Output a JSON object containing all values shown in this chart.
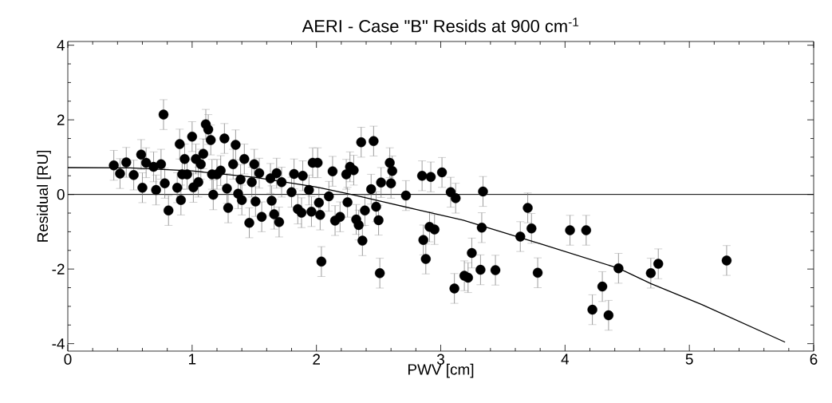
{
  "chart_data": {
    "type": "scatter",
    "title": "AERI - Case \"B\" Resids at 900 cm$^{-1}$",
    "xlabel": "PWV [cm]",
    "ylabel": "Residual [RU]",
    "xlim": [
      0,
      6
    ],
    "ylim": [
      -4.2,
      4.1
    ],
    "xticks": [
      0,
      1,
      2,
      3,
      4,
      5,
      6
    ],
    "yticks": [
      -4,
      -2,
      0,
      2,
      4
    ],
    "ref_lines": [
      {
        "axis": "y",
        "value": 0,
        "color": "#000000"
      }
    ],
    "series": [
      {
        "marker": "circle",
        "color": "#000000",
        "x": [
          0.37,
          0.42,
          0.47,
          0.53,
          0.59,
          0.63,
          0.6,
          0.71,
          0.77,
          0.81,
          0.78,
          0.88,
          0.9,
          0.91,
          0.92,
          0.94,
          1.0,
          1.01,
          1.11,
          1.13,
          1.15,
          1.07,
          1.17,
          1.2,
          1.23,
          1.26,
          1.28,
          1.29,
          1.35,
          1.37,
          1.4,
          1.42,
          1.46,
          1.48,
          1.51,
          1.54,
          1.56,
          1.63,
          1.64,
          1.66,
          1.03,
          1.05,
          1.09,
          1.16,
          1.33,
          1.39,
          1.5,
          0.96,
          0.69,
          0.75,
          1.7,
          1.68,
          1.72,
          1.82,
          1.8,
          1.85,
          1.88,
          1.89,
          1.96,
          1.97,
          2.01,
          1.94,
          2.02,
          2.03,
          2.04,
          2.1,
          2.13,
          2.15,
          2.19,
          2.24,
          2.25,
          2.27,
          2.3,
          2.32,
          2.34,
          2.36,
          2.37,
          2.39,
          2.44,
          2.46,
          2.48,
          2.5,
          2.51,
          2.52,
          2.59,
          2.6,
          2.61,
          2.72,
          2.85,
          2.88,
          2.86,
          2.92,
          2.91,
          2.95,
          3.01,
          3.08,
          3.12,
          3.11,
          3.19,
          3.22,
          3.25,
          3.34,
          3.33,
          3.32,
          3.44,
          3.7,
          3.73,
          3.64,
          3.78,
          4.04,
          4.17,
          4.22,
          4.3,
          4.35,
          4.43,
          4.69,
          4.75,
          5.3
        ],
        "values": [
          0.78,
          0.56,
          0.86,
          0.52,
          1.07,
          0.85,
          0.18,
          0.12,
          2.14,
          -0.43,
          0.3,
          0.18,
          1.35,
          -0.15,
          0.54,
          0.95,
          1.55,
          0.19,
          1.88,
          1.74,
          1.46,
          0.81,
          -0.01,
          0.54,
          0.64,
          1.5,
          0.16,
          -0.36,
          1.33,
          0.02,
          -0.15,
          0.95,
          -0.76,
          0.33,
          -0.19,
          0.57,
          -0.6,
          0.43,
          -0.17,
          -0.53,
          0.95,
          0.33,
          1.09,
          0.54,
          0.81,
          0.4,
          0.81,
          0.54,
          0.74,
          0.81,
          -0.74,
          0.57,
          0.33,
          0.55,
          0.06,
          -0.39,
          -0.49,
          0.5,
          -0.46,
          0.85,
          0.85,
          0.12,
          -0.22,
          -0.55,
          -1.8,
          -0.05,
          0.62,
          -0.7,
          -0.6,
          0.54,
          -0.21,
          0.74,
          0.65,
          -0.67,
          -0.82,
          1.4,
          -1.24,
          -0.43,
          0.14,
          1.43,
          -0.33,
          -0.69,
          -2.11,
          0.32,
          0.85,
          0.3,
          0.63,
          -0.03,
          0.5,
          -1.73,
          -1.22,
          0.47,
          -0.87,
          -0.94,
          0.59,
          0.06,
          -0.1,
          -2.52,
          -2.18,
          -2.23,
          -1.57,
          0.08,
          -0.89,
          -2.02,
          -2.03,
          -0.36,
          -0.91,
          -1.13,
          -2.1,
          -0.96,
          -0.96,
          -3.09,
          -2.47,
          -3.24,
          -1.98,
          -2.11,
          -1.86,
          -1.77
        ],
        "errors": [
          0.4,
          0.4,
          0.4,
          0.4,
          0.4,
          0.4,
          0.4,
          0.4,
          0.4,
          0.4,
          0.4,
          0.4,
          0.4,
          0.4,
          0.4,
          0.4,
          0.4,
          0.4,
          0.4,
          0.4,
          0.4,
          0.4,
          0.4,
          0.4,
          0.4,
          0.4,
          0.4,
          0.4,
          0.4,
          0.4,
          0.4,
          0.4,
          0.4,
          0.4,
          0.4,
          0.4,
          0.4,
          0.4,
          0.4,
          0.4,
          0.4,
          0.4,
          0.4,
          0.4,
          0.4,
          0.4,
          0.4,
          0.4,
          0.4,
          0.4,
          0.4,
          0.4,
          0.4,
          0.4,
          0.4,
          0.4,
          0.4,
          0.4,
          0.4,
          0.4,
          0.4,
          0.4,
          0.4,
          0.4,
          0.4,
          0.4,
          0.4,
          0.4,
          0.4,
          0.4,
          0.4,
          0.4,
          0.4,
          0.4,
          0.4,
          0.4,
          0.4,
          0.4,
          0.4,
          0.4,
          0.4,
          0.4,
          0.4,
          0.4,
          0.4,
          0.4,
          0.4,
          0.4,
          0.4,
          0.4,
          0.4,
          0.4,
          0.4,
          0.4,
          0.4,
          0.4,
          0.4,
          0.4,
          0.4,
          0.4,
          0.4,
          0.4,
          0.4,
          0.4,
          0.4,
          0.4,
          0.4,
          0.4,
          0.4,
          0.4,
          0.4,
          0.4,
          0.4,
          0.4,
          0.4,
          0.4,
          0.4,
          0.4
        ]
      },
      {
        "type": "line",
        "marker": "none",
        "color": "#000000",
        "x": [
          0,
          0.5,
          1.0,
          1.5,
          2.0,
          2.28,
          2.8,
          3.18,
          3.82,
          4.43,
          4.69,
          5.1,
          5.77
        ],
        "values": [
          0.72,
          0.71,
          0.63,
          0.46,
          0.2,
          0,
          -0.4,
          -0.69,
          -1.34,
          -1.98,
          -2.39,
          -2.95,
          -3.96
        ]
      }
    ]
  }
}
